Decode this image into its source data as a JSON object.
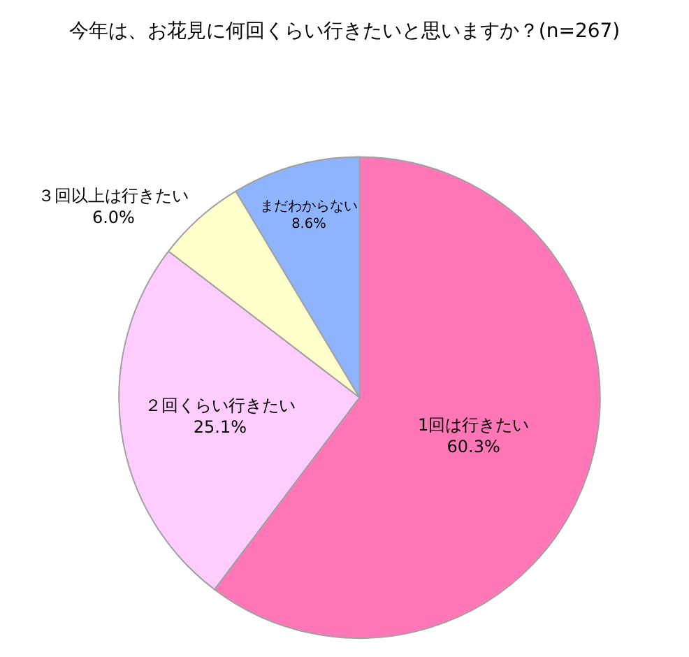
{
  "chart_data": {
    "type": "pie",
    "title": "今年は、お花見に何回くらい行きたいと思いますか？(n=267)",
    "categories": [
      "1回は行きたい",
      "２回くらい行きたい",
      "３回以上は行きたい",
      "まだわからない"
    ],
    "values": [
      60.3,
      25.1,
      6.0,
      8.6
    ],
    "value_labels": [
      "60.3%",
      "25.1%",
      "6.0%",
      "8.6%"
    ],
    "colors": [
      "#ff77b7",
      "#ffccff",
      "#ffffcc",
      "#8fb4ff"
    ],
    "legend": false
  }
}
